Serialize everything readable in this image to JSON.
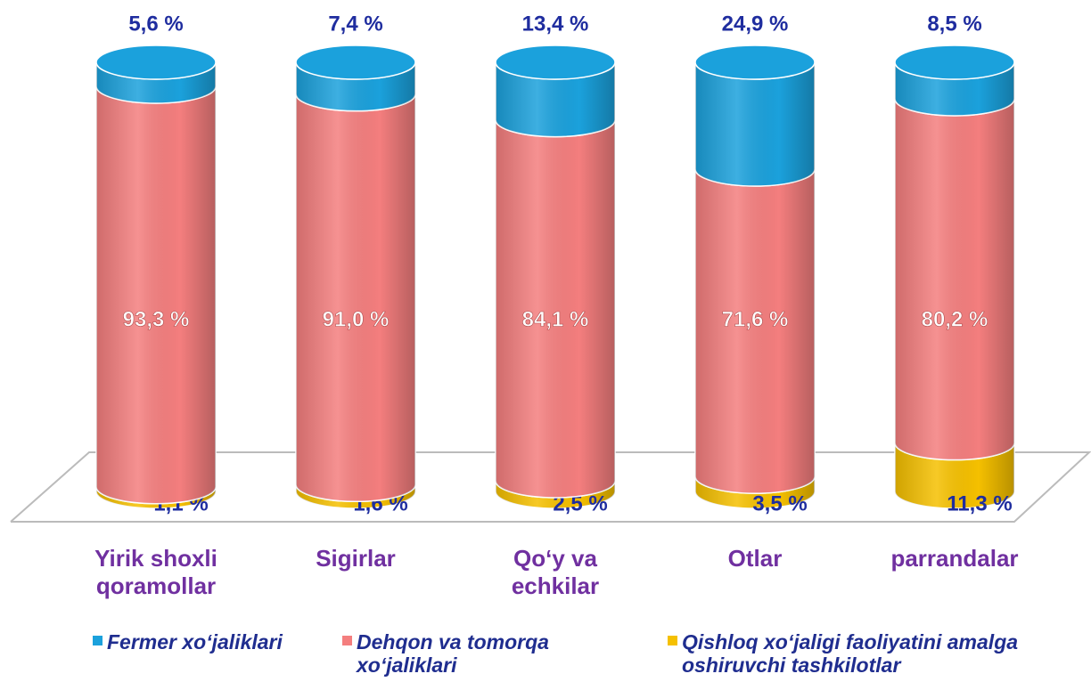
{
  "chart_data": {
    "type": "stacked-cylinder",
    "categories": [
      "Yirik shoxli qoramollar",
      "Sigirlar",
      "Qo‘y va echkilar",
      "Otlar",
      "parrandalar"
    ],
    "series": [
      {
        "name": "Fermer xo‘jaliklari",
        "color": "#1ba1dc",
        "values": [
          5.6,
          7.4,
          13.4,
          24.9,
          8.5
        ],
        "value_labels": [
          "5,6 %",
          "7,4 %",
          "13,4 %",
          "24,9 %",
          "8,5 %"
        ]
      },
      {
        "name": "Dehqon va tomorqa xo‘jaliklari",
        "color": "#f47e7e",
        "values": [
          93.3,
          91.0,
          84.1,
          71.6,
          80.2
        ],
        "value_labels": [
          "93,3 %",
          "91,0 %",
          "84,1 %",
          "71,6 %",
          "80,2 %"
        ]
      },
      {
        "name": "Qishloq xo‘jaligi faoliyatini amalga oshiruvchi tashkilotlar",
        "color": "#f5c000",
        "values": [
          1.1,
          1.6,
          2.5,
          3.5,
          11.3
        ],
        "value_labels": [
          "1,1 %",
          "1,6 %",
          "2,5 %",
          "3,5 %",
          "11,3 %"
        ]
      }
    ]
  }
}
